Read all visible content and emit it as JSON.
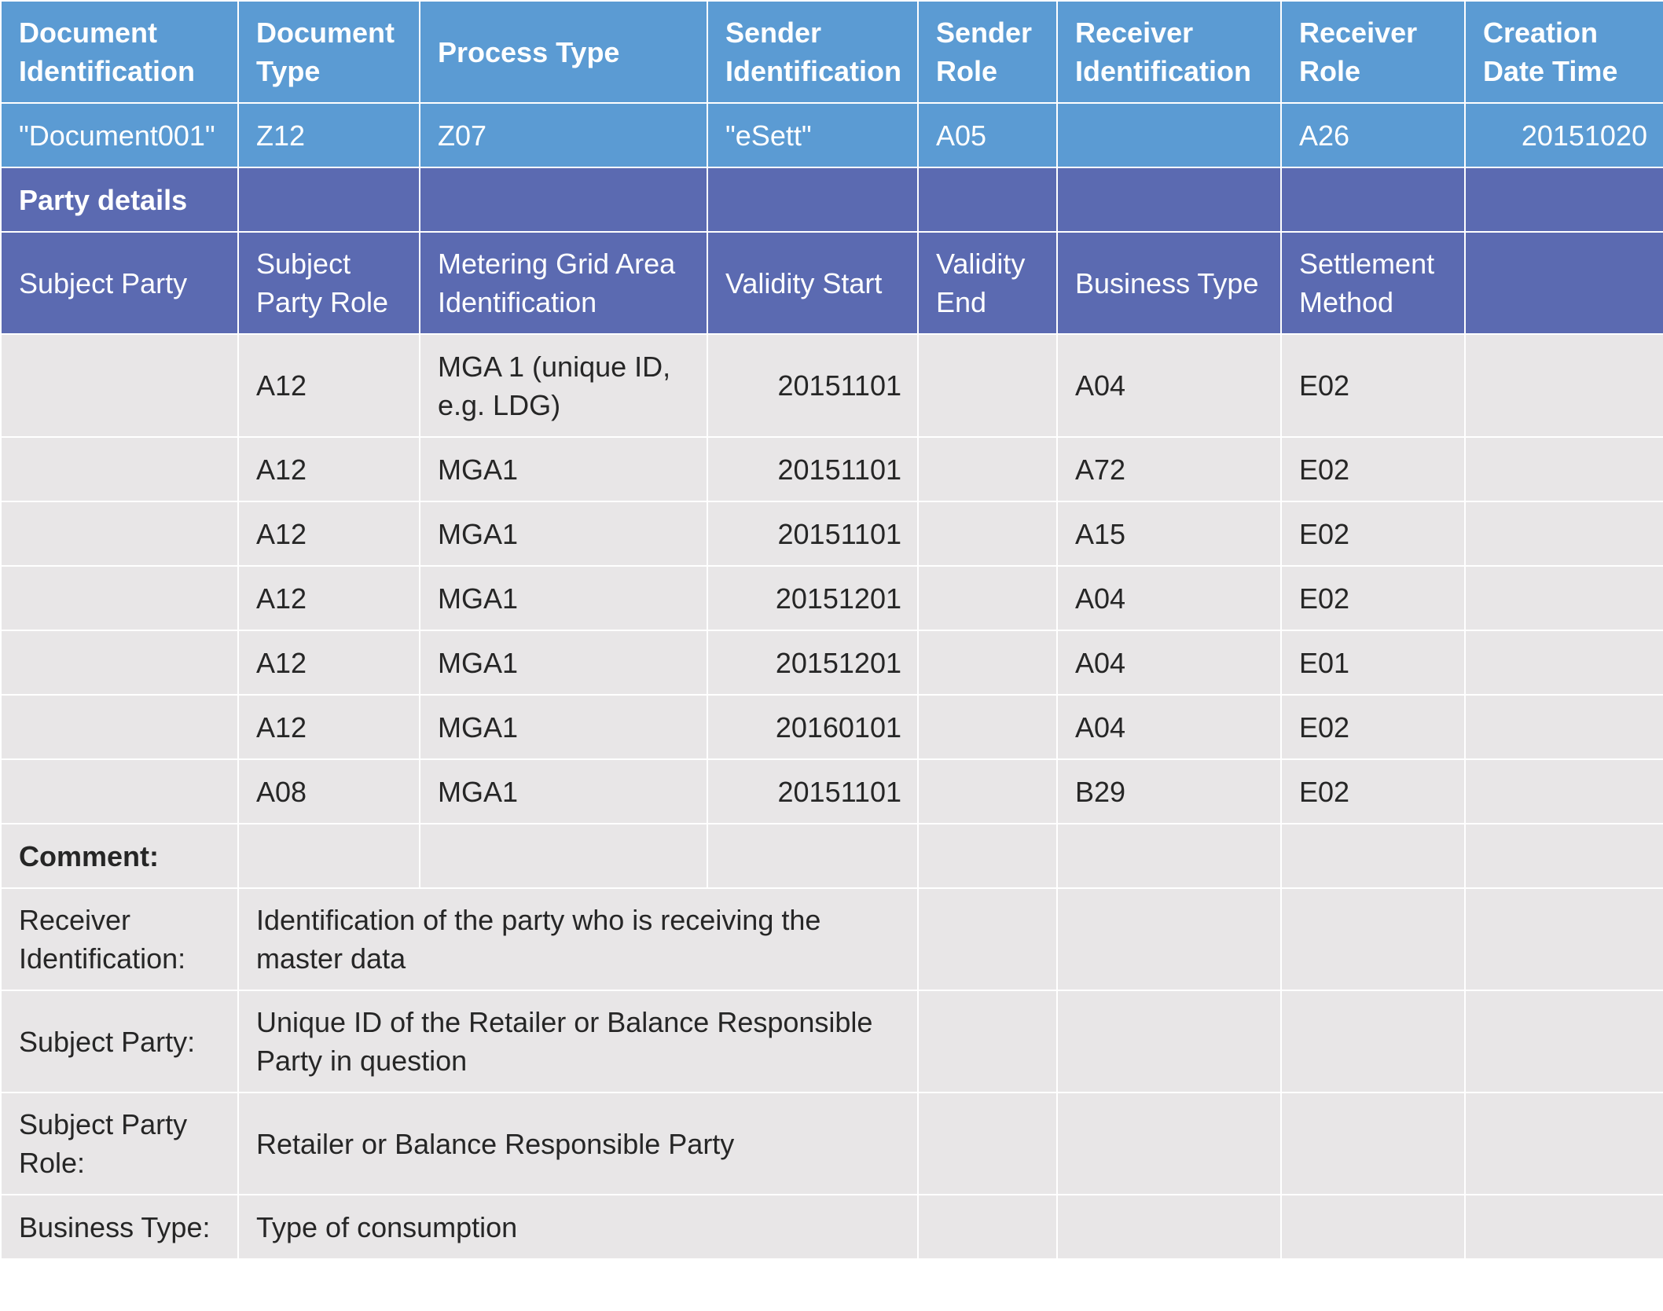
{
  "header": {
    "document_identification": "Document Identification",
    "document_type": "Document Type",
    "process_type": "Process Type",
    "sender_identification": "Sender Identification",
    "sender_role": "Sender Role",
    "receiver_identification": "Receiver Identification",
    "receiver_role": "Receiver Role",
    "creation_date_time": "Creation Date Time"
  },
  "document_row": {
    "document_identification": "\"Document001\"",
    "document_type": "Z12",
    "process_type": "Z07",
    "sender_identification": "\"eSett\"",
    "sender_role": "A05",
    "receiver_identification": "",
    "receiver_role": "A26",
    "creation_date_time": "20151020"
  },
  "party_details": {
    "title": "Party details"
  },
  "party_header": {
    "subject_party": "Subject Party",
    "subject_party_role": "Subject Party Role",
    "metering_grid_area": "Metering Grid Area Identification",
    "validity_start": "Validity Start",
    "validity_end": "Validity End",
    "business_type": "Business Type",
    "settlement_method": "Settlement Method"
  },
  "party_rows": [
    {
      "subject_party": "",
      "role": "A12",
      "mga": "MGA 1 (unique ID, e.g. LDG)",
      "validity_start": "20151101",
      "validity_end": "",
      "business_type": "A04",
      "settlement_method": "E02"
    },
    {
      "subject_party": "",
      "role": "A12",
      "mga": "MGA1",
      "validity_start": "20151101",
      "validity_end": "",
      "business_type": "A72",
      "settlement_method": "E02"
    },
    {
      "subject_party": "",
      "role": "A12",
      "mga": "MGA1",
      "validity_start": "20151101",
      "validity_end": "",
      "business_type": "A15",
      "settlement_method": "E02"
    },
    {
      "subject_party": "",
      "role": "A12",
      "mga": "MGA1",
      "validity_start": "20151201",
      "validity_end": "",
      "business_type": "A04",
      "settlement_method": "E02"
    },
    {
      "subject_party": "",
      "role": "A12",
      "mga": "MGA1",
      "validity_start": "20151201",
      "validity_end": "",
      "business_type": "A04",
      "settlement_method": "E01"
    },
    {
      "subject_party": "",
      "role": "A12",
      "mga": "MGA1",
      "validity_start": "20160101",
      "validity_end": "",
      "business_type": "A04",
      "settlement_method": "E02"
    },
    {
      "subject_party": "",
      "role": "A08",
      "mga": "MGA1",
      "validity_start": "20151101",
      "validity_end": "",
      "business_type": "B29",
      "settlement_method": "E02"
    }
  ],
  "comment": {
    "title": "Comment:",
    "items": [
      {
        "term": "Receiver Identification:",
        "description": "Identification of the party who is receiving the master data"
      },
      {
        "term": "Subject Party:",
        "description": "Unique ID of the Retailer or Balance Responsible Party in question"
      },
      {
        "term": "Subject Party Role:",
        "description": "Retailer or Balance Responsible Party"
      },
      {
        "term": "Business Type:",
        "description": "Type of consumption"
      }
    ]
  }
}
